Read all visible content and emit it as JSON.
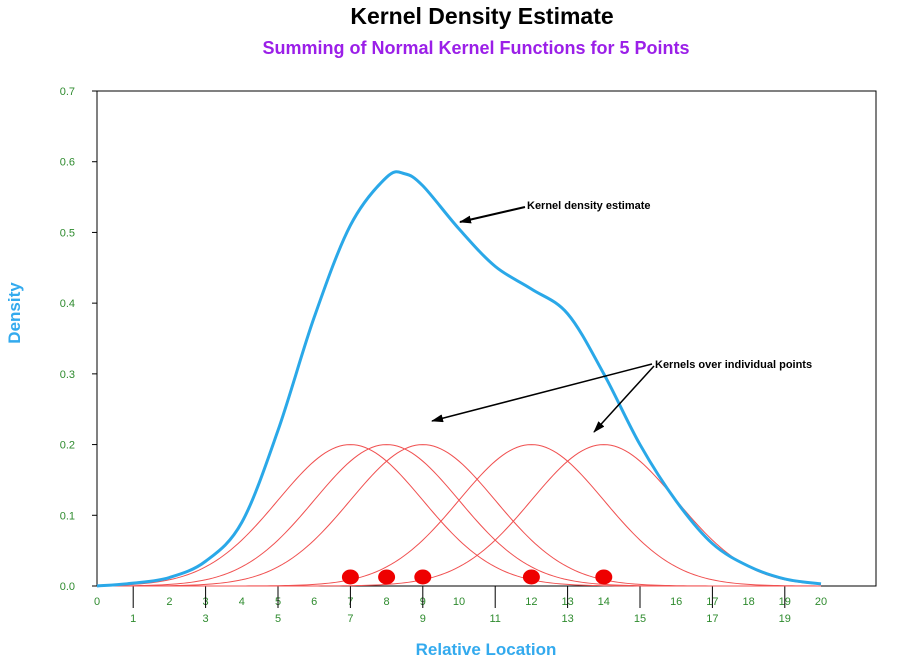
{
  "chart_data": {
    "type": "line",
    "title": "Kernel Density Estimate",
    "subtitle": "Summing of Normal Kernel Functions for 5 Points",
    "xlabel": "Relative Location",
    "ylabel": "Density",
    "xlim": [
      0,
      20
    ],
    "ylim": [
      0,
      0.7
    ],
    "x_ticks_upper": [
      "0",
      "2",
      "3",
      "4",
      "5",
      "6",
      "7",
      "8",
      "9",
      "10",
      "12",
      "13",
      "14",
      "16",
      "17",
      "18",
      "19",
      "20"
    ],
    "x_ticks_lower": [
      "1",
      "3",
      "5",
      "7",
      "9",
      "11",
      "13",
      "15",
      "17",
      "19"
    ],
    "y_ticks": [
      "0.0",
      "0.1",
      "0.2",
      "0.3",
      "0.4",
      "0.5",
      "0.6",
      "0.7"
    ],
    "kernel_sd": 2,
    "kernel_peak": 0.2,
    "points": [
      7,
      8,
      9,
      12,
      14
    ],
    "kde_values": [
      {
        "x": 0,
        "y": 0.0
      },
      {
        "x": 1,
        "y": 0.004
      },
      {
        "x": 2,
        "y": 0.012
      },
      {
        "x": 3,
        "y": 0.035
      },
      {
        "x": 4,
        "y": 0.09
      },
      {
        "x": 5,
        "y": 0.22
      },
      {
        "x": 6,
        "y": 0.38
      },
      {
        "x": 7,
        "y": 0.51
      },
      {
        "x": 8,
        "y": 0.578
      },
      {
        "x": 8.5,
        "y": 0.583
      },
      {
        "x": 9,
        "y": 0.566
      },
      {
        "x": 10,
        "y": 0.505
      },
      {
        "x": 11,
        "y": 0.452
      },
      {
        "x": 12,
        "y": 0.42
      },
      {
        "x": 13,
        "y": 0.385
      },
      {
        "x": 14,
        "y": 0.3
      },
      {
        "x": 15,
        "y": 0.2
      },
      {
        "x": 16,
        "y": 0.12
      },
      {
        "x": 17,
        "y": 0.06
      },
      {
        "x": 18,
        "y": 0.028
      },
      {
        "x": 19,
        "y": 0.01
      },
      {
        "x": 20,
        "y": 0.003
      }
    ],
    "annotations": [
      {
        "text": "Kernel density estimate"
      },
      {
        "text": "Kernels over individual points"
      }
    ],
    "colors": {
      "kde": "#2aa8e8",
      "kernel": "#f05050",
      "point": "#ee0000",
      "subtitle": "#9b1fe8",
      "axis_title": "#33aaee",
      "tick": "#2e8b2e",
      "axis": "#000000"
    }
  }
}
